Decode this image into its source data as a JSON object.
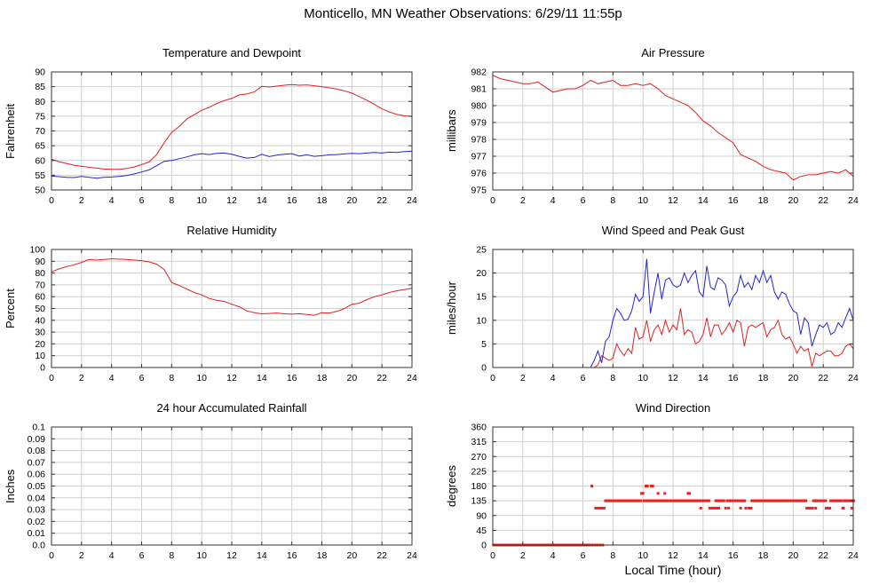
{
  "page_title": "Monticello, MN Weather Observations: 6/29/11 11:55p",
  "colors": {
    "red": "#e02020",
    "blue": "#2323d4",
    "grid": "#cfcfcf",
    "border": "#333333",
    "dot": "#f02020"
  },
  "chart_data": [
    {
      "id": "temperature-dewpoint",
      "type": "line",
      "title": "Temperature and Dewpoint",
      "ylabel": "Fahrenheit",
      "xlabel": "",
      "xlim": [
        0,
        24
      ],
      "xtick": 2,
      "ylim": [
        50,
        90
      ],
      "ytick": 5,
      "grid": true,
      "legend": "none",
      "series": [
        {
          "name": "temperature",
          "color": "#e02020",
          "x0": 0,
          "dx": 0.5,
          "values": [
            60.4,
            59.6,
            59.0,
            58.4,
            58.0,
            57.7,
            57.4,
            57.1,
            57.0,
            57.0,
            57.3,
            57.8,
            58.6,
            59.5,
            62.0,
            66.0,
            69.5,
            71.5,
            74.0,
            75.5,
            77.0,
            78.0,
            79.3,
            80.3,
            81.0,
            82.2,
            82.5,
            83.2,
            85.1,
            84.9,
            85.2,
            85.5,
            85.7,
            85.5,
            85.6,
            85.3,
            85.0,
            84.6,
            84.2,
            83.6,
            82.8,
            81.6,
            80.4,
            79.0,
            77.5,
            76.4,
            75.6,
            75.1,
            74.9
          ]
        },
        {
          "name": "dewpoint",
          "color": "#2323d4",
          "x0": 0,
          "dx": 0.5,
          "values": [
            54.7,
            54.5,
            54.3,
            54.2,
            54.6,
            54.3,
            54.0,
            54.3,
            54.4,
            54.6,
            54.9,
            55.4,
            56.1,
            56.8,
            58.2,
            59.7,
            60.0,
            60.6,
            61.2,
            61.9,
            62.3,
            62.0,
            62.4,
            62.5,
            62.1,
            61.4,
            60.8,
            61.0,
            62.1,
            61.3,
            61.8,
            62.1,
            62.3,
            61.5,
            61.9,
            61.4,
            61.6,
            61.9,
            62.0,
            62.2,
            62.4,
            62.3,
            62.5,
            62.7,
            62.5,
            62.8,
            62.7,
            63.0,
            63.1
          ]
        }
      ]
    },
    {
      "id": "air-pressure",
      "type": "line",
      "title": "Air Pressure",
      "ylabel": "millibars",
      "xlabel": "",
      "xlim": [
        0,
        24
      ],
      "xtick": 2,
      "ylim": [
        975,
        982
      ],
      "ytick": 1,
      "grid": true,
      "legend": "none",
      "series": [
        {
          "name": "pressure",
          "color": "#e02020",
          "x0": 0,
          "dx": 0.5,
          "values": [
            981.8,
            981.6,
            981.5,
            981.4,
            981.3,
            981.3,
            981.4,
            981.1,
            980.8,
            980.9,
            981.0,
            981.0,
            981.2,
            981.5,
            981.3,
            981.4,
            981.5,
            981.2,
            981.2,
            981.3,
            981.2,
            981.3,
            981.0,
            980.6,
            980.4,
            980.2,
            980.0,
            979.6,
            979.1,
            978.8,
            978.4,
            978.1,
            977.8,
            977.1,
            976.9,
            976.7,
            976.4,
            976.2,
            976.1,
            976.0,
            975.6,
            975.8,
            975.9,
            975.9,
            976.0,
            976.1,
            976.0,
            976.2,
            975.8
          ]
        }
      ]
    },
    {
      "id": "relative-humidity",
      "type": "line",
      "title": "Relative Humidity",
      "ylabel": "Percent",
      "xlabel": "",
      "xlim": [
        0,
        24
      ],
      "xtick": 2,
      "ylim": [
        0,
        100
      ],
      "ytick": 10,
      "grid": true,
      "legend": "none",
      "series": [
        {
          "name": "humidity",
          "color": "#e02020",
          "x0": 0,
          "dx": 0.5,
          "values": [
            81,
            83.5,
            85.5,
            87,
            89,
            91.5,
            91,
            91.5,
            92,
            91.8,
            91.5,
            91,
            90.5,
            89.5,
            87.5,
            83,
            72,
            69.5,
            66.5,
            63.5,
            61.5,
            58.5,
            57,
            56,
            53.5,
            51.5,
            48,
            46.5,
            45.5,
            45.8,
            46.2,
            45.5,
            45.2,
            45.6,
            45,
            44.3,
            46.4,
            46.2,
            47.5,
            50,
            53.5,
            54.5,
            57.5,
            60,
            61.5,
            63.5,
            65,
            66,
            67.2
          ]
        }
      ]
    },
    {
      "id": "wind-speed-gust",
      "type": "line",
      "title": "Wind Speed and Peak Gust",
      "ylabel": "miles/hour",
      "xlabel": "",
      "xlim": [
        0,
        24
      ],
      "xtick": 2,
      "ylim": [
        0,
        25
      ],
      "ytick": 5,
      "grid": true,
      "legend": "none",
      "series": [
        {
          "name": "wind-speed",
          "color": "#e02020",
          "x0": 0,
          "dx": 0.25,
          "values": [
            0,
            0,
            0,
            0,
            0,
            0,
            0,
            0,
            0,
            0,
            0,
            0,
            0,
            0,
            0,
            0,
            0,
            0,
            0,
            0,
            0,
            0,
            0,
            0,
            0,
            0,
            0,
            0,
            0.5,
            2.5,
            2,
            1.5,
            2,
            5,
            3.5,
            2.5,
            4,
            3,
            8.5,
            6,
            6.5,
            10,
            5.5,
            8,
            9,
            7,
            10,
            7.5,
            9,
            8,
            12.5,
            7,
            8,
            7.5,
            5,
            5.5,
            7,
            10.5,
            6.5,
            9,
            9,
            7,
            8,
            9.5,
            7.5,
            10,
            9.5,
            4.5,
            8.5,
            9,
            8.5,
            9,
            9.5,
            6.5,
            8,
            8.5,
            10,
            7,
            6,
            6.5,
            5,
            3,
            4.5,
            3.5,
            4,
            0.2,
            3,
            2.5,
            3,
            3.5,
            3.5,
            2.5,
            2.5,
            3,
            4.5,
            5,
            4
          ]
        },
        {
          "name": "peak-gust",
          "color": "#2323d4",
          "x0": 0,
          "dx": 0.25,
          "values": [
            0,
            0,
            0,
            0,
            0,
            0,
            0,
            0,
            0,
            0,
            0,
            0,
            0,
            0,
            0,
            0,
            0,
            0,
            0,
            0,
            0,
            0,
            0,
            0,
            0,
            0,
            0,
            1.5,
            3.5,
            1,
            5.5,
            6.5,
            10,
            12.5,
            11.5,
            10,
            10.2,
            12,
            15.5,
            14,
            15,
            23,
            11.5,
            16,
            20,
            14.5,
            18.5,
            19,
            17.5,
            17,
            17.5,
            20,
            18,
            19.5,
            20.5,
            16,
            15,
            21.5,
            17,
            16.5,
            19,
            18.5,
            17.5,
            13,
            15,
            16,
            19.5,
            17,
            18,
            16.5,
            19.5,
            18,
            20.5,
            18,
            19.5,
            16,
            14.5,
            16,
            15.5,
            13.5,
            12,
            11.5,
            7,
            10.5,
            9.5,
            4.5,
            7,
            9,
            8.5,
            9.5,
            7,
            7.5,
            9.5,
            8.5,
            10.5,
            12.5,
            10
          ]
        }
      ]
    },
    {
      "id": "rainfall",
      "type": "line",
      "title": "24 hour Accumulated Rainfall",
      "ylabel": "Inches",
      "xlabel": "",
      "xlim": [
        0,
        24
      ],
      "xtick": 2,
      "ylim": [
        0,
        0.1
      ],
      "ytick": 0.01,
      "grid": true,
      "legend": "none",
      "series": [
        {
          "name": "rainfall",
          "color": "#e02020",
          "x0": 0,
          "dx": 24,
          "values": [
            0,
            0
          ]
        }
      ]
    },
    {
      "id": "wind-direction",
      "type": "scatter",
      "title": "Wind Direction",
      "ylabel": "degrees",
      "xlabel": "Local Time (hour)",
      "xlim": [
        0,
        24
      ],
      "xtick": 2,
      "ylim": [
        0,
        360
      ],
      "ytick": 45,
      "grid": true,
      "legend": "none",
      "series": [
        {
          "name": "direction",
          "color": "#f02020",
          "runs": [
            {
              "y": 0,
              "from": 0.05,
              "to": 6.45,
              "step": 0.07
            },
            {
              "y": 0,
              "from": 6.6,
              "to": 7.35,
              "step": 0.18
            },
            {
              "y": 135,
              "from": 7.5,
              "to": 9.85,
              "step": 0.09
            },
            {
              "y": 135,
              "from": 10.05,
              "to": 13.8,
              "step": 0.09
            },
            {
              "y": 135,
              "from": 13.95,
              "to": 14.4,
              "step": 0.09
            },
            {
              "y": 135,
              "from": 14.85,
              "to": 15.35,
              "step": 0.09
            },
            {
              "y": 135,
              "from": 15.6,
              "to": 16.8,
              "step": 0.09
            },
            {
              "y": 135,
              "from": 17.25,
              "to": 20.85,
              "step": 0.09
            },
            {
              "y": 135,
              "from": 21.35,
              "to": 22.15,
              "step": 0.09
            },
            {
              "y": 135,
              "from": 22.5,
              "to": 23.25,
              "step": 0.09
            },
            {
              "y": 135,
              "from": 23.4,
              "to": 24.0,
              "step": 0.09
            },
            {
              "y": 112.5,
              "from": 6.85,
              "to": 7.4,
              "step": 0.14
            },
            {
              "y": 112.5,
              "from": 14.45,
              "to": 15.05,
              "step": 0.15
            },
            {
              "y": 112.5,
              "from": 20.9,
              "to": 21.3,
              "step": 0.13
            },
            {
              "y": 112.5,
              "from": 22.2,
              "to": 22.45,
              "step": 0.12
            }
          ],
          "points": [
            [
              6.6,
              180
            ],
            [
              10.2,
              180
            ],
            [
              10.3,
              180
            ],
            [
              10.55,
              180
            ],
            [
              10.65,
              180
            ],
            [
              9.9,
              157.5
            ],
            [
              10.0,
              157.5
            ],
            [
              11.0,
              157.5
            ],
            [
              11.45,
              157.5
            ],
            [
              13.0,
              157.5
            ],
            [
              13.1,
              157.5
            ],
            [
              13.85,
              112.5
            ],
            [
              15.5,
              112.5
            ],
            [
              15.7,
              112.5
            ],
            [
              16.5,
              112.5
            ],
            [
              16.85,
              112.5
            ],
            [
              17.05,
              112.5
            ],
            [
              17.2,
              112.5
            ],
            [
              21.5,
              112.5
            ],
            [
              23.3,
              112.5
            ],
            [
              23.35,
              112.5
            ],
            [
              23.9,
              112.5
            ]
          ]
        }
      ]
    }
  ]
}
